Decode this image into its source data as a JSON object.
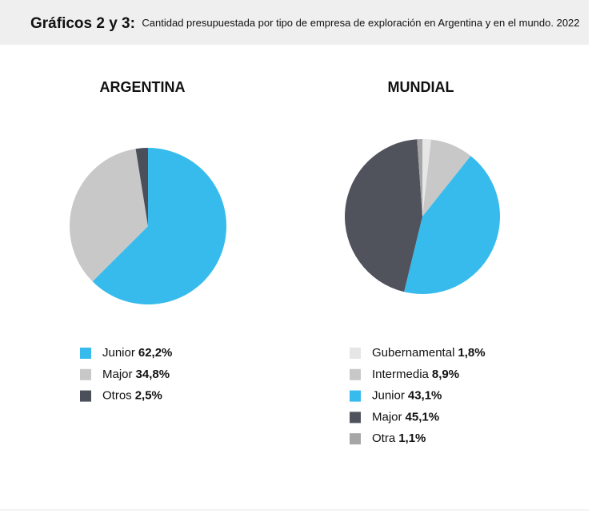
{
  "header": {
    "title": "Gráficos 2 y 3:",
    "subtitle": "Cantidad presupuestada por tipo de empresa de exploración en Argentina y en el mundo. 2022"
  },
  "chart_data": [
    {
      "type": "pie",
      "title": "ARGENTINA",
      "categories": [
        "Junior",
        "Major",
        "Otros"
      ],
      "values": [
        62.2,
        34.8,
        2.5
      ],
      "value_labels": [
        "62,2%",
        "34,8%",
        "2,5%"
      ],
      "colors": [
        "#37bbed",
        "#c8c8c8",
        "#4a4f59"
      ]
    },
    {
      "type": "pie",
      "title": "MUNDIAL",
      "categories": [
        "Gubernamental",
        "Intermedia",
        "Junior",
        "Major",
        "Otra"
      ],
      "values": [
        1.8,
        8.9,
        43.1,
        45.1,
        1.1
      ],
      "value_labels": [
        "1,8%",
        "8,9%",
        "43,1%",
        "45,1%",
        "1,1%"
      ],
      "colors": [
        "#e6e6e6",
        "#c8c8c8",
        "#37bbed",
        "#50535c",
        "#a6a6a6"
      ]
    }
  ]
}
